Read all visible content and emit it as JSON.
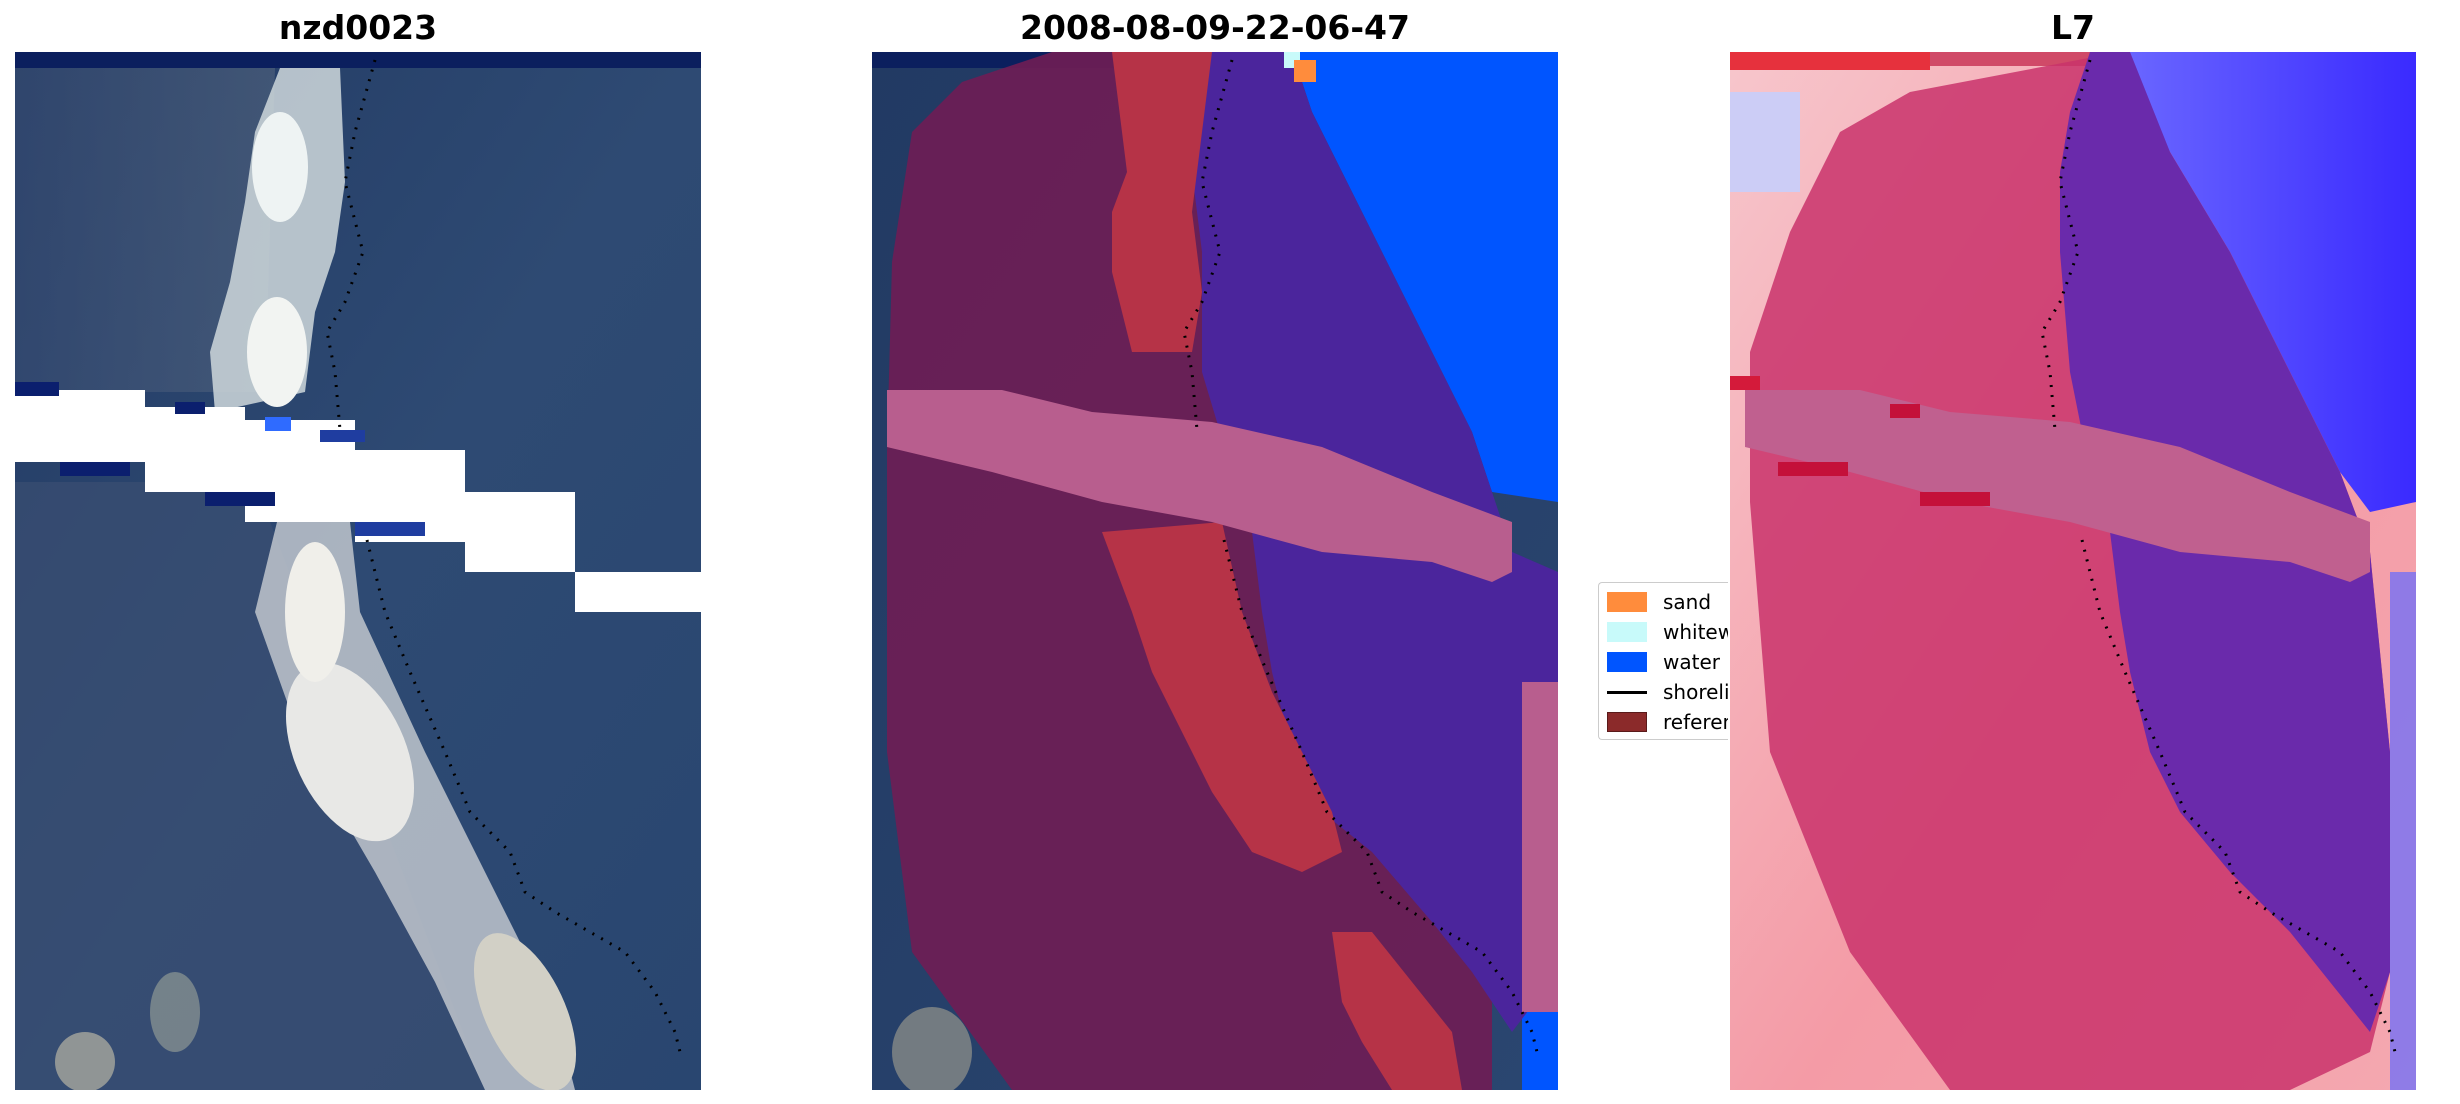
{
  "figure": {
    "titles": {
      "left": "nzd0023",
      "middle": "2008-08-09-22-06-47",
      "right": "L7"
    }
  },
  "legend": {
    "entries": [
      {
        "label": "sand",
        "color": "#ff8c3c",
        "kind": "patch"
      },
      {
        "label": "whitewater",
        "color": "#c8fafa",
        "kind": "patch"
      },
      {
        "label": "water",
        "color": "#0055ff",
        "kind": "patch"
      },
      {
        "label": "shoreline",
        "color": "#000000",
        "kind": "line"
      },
      {
        "label": "reference",
        "color": "#8b2a2a",
        "kind": "patch"
      }
    ]
  },
  "colors": {
    "sea": "#2c4570",
    "beach": "#e8ecef",
    "sand_class": "#ff8c3c",
    "whitewater_class": "#c8fafa",
    "water_class": "#0055ff",
    "reference_zone": "#8b2a2a",
    "index_positive": "#c8204a",
    "index_negative": "#3a2aff"
  }
}
